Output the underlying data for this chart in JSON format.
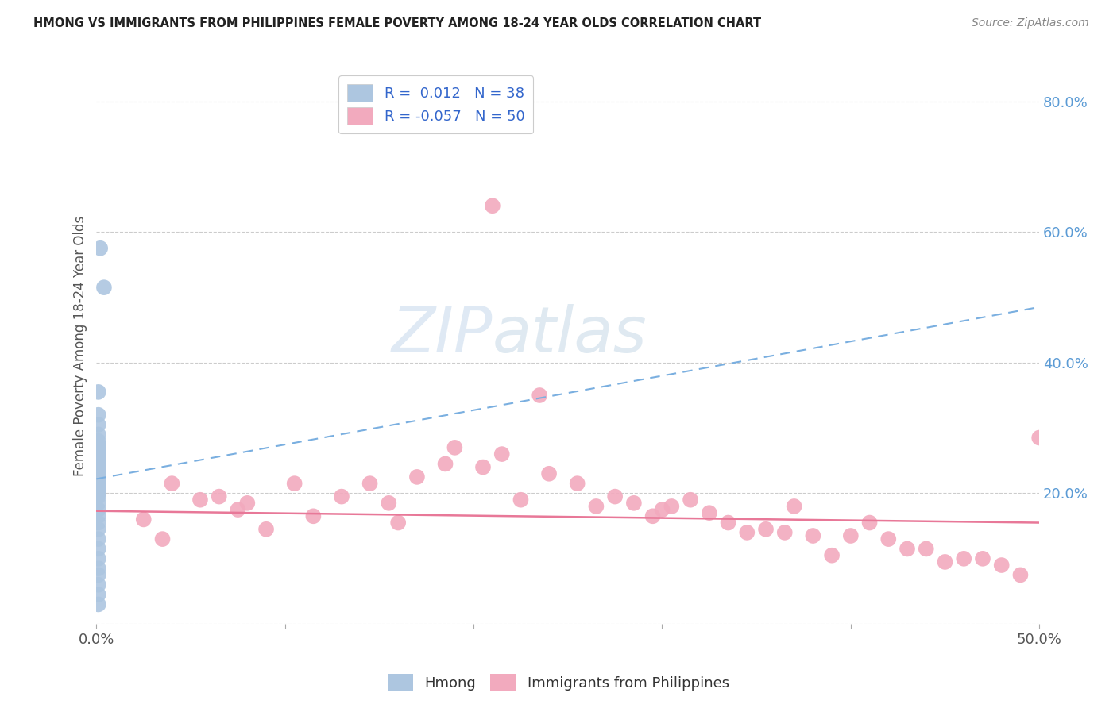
{
  "title": "HMONG VS IMMIGRANTS FROM PHILIPPINES FEMALE POVERTY AMONG 18-24 YEAR OLDS CORRELATION CHART",
  "source": "Source: ZipAtlas.com",
  "ylabel": "Female Poverty Among 18-24 Year Olds",
  "xlim": [
    0.0,
    0.5
  ],
  "ylim": [
    0.0,
    0.85
  ],
  "hmong_color": "#adc6e0",
  "phil_color": "#f2aabe",
  "trendline_hmong_color": "#7aafe0",
  "trendline_phil_color": "#e87898",
  "watermark_zip": "ZIP",
  "watermark_atlas": "atlas",
  "hmong_trendline_x0": 0.0,
  "hmong_trendline_y0": 0.222,
  "hmong_trendline_x1": 0.5,
  "hmong_trendline_y1": 0.485,
  "phil_trendline_x0": 0.0,
  "phil_trendline_y0": 0.173,
  "phil_trendline_x1": 0.5,
  "phil_trendline_y1": 0.155,
  "hmong_x": [
    0.002,
    0.004,
    0.001,
    0.001,
    0.001,
    0.001,
    0.001,
    0.001,
    0.001,
    0.001,
    0.001,
    0.001,
    0.001,
    0.001,
    0.001,
    0.001,
    0.001,
    0.001,
    0.001,
    0.001,
    0.001,
    0.001,
    0.001,
    0.001,
    0.001,
    0.001,
    0.001,
    0.001,
    0.001,
    0.001,
    0.001,
    0.001,
    0.001,
    0.001,
    0.001,
    0.001,
    0.001,
    0.001
  ],
  "hmong_y": [
    0.575,
    0.515,
    0.355,
    0.32,
    0.305,
    0.29,
    0.28,
    0.275,
    0.27,
    0.265,
    0.26,
    0.255,
    0.25,
    0.245,
    0.24,
    0.235,
    0.23,
    0.225,
    0.22,
    0.22,
    0.215,
    0.21,
    0.205,
    0.2,
    0.195,
    0.185,
    0.175,
    0.165,
    0.155,
    0.145,
    0.13,
    0.115,
    0.1,
    0.085,
    0.075,
    0.06,
    0.045,
    0.03
  ],
  "phil_x": [
    0.21,
    0.04,
    0.055,
    0.065,
    0.08,
    0.09,
    0.105,
    0.115,
    0.13,
    0.145,
    0.155,
    0.17,
    0.185,
    0.19,
    0.205,
    0.215,
    0.225,
    0.24,
    0.255,
    0.265,
    0.275,
    0.285,
    0.295,
    0.305,
    0.315,
    0.325,
    0.335,
    0.345,
    0.355,
    0.365,
    0.37,
    0.38,
    0.39,
    0.4,
    0.41,
    0.42,
    0.43,
    0.44,
    0.45,
    0.46,
    0.47,
    0.48,
    0.49,
    0.3,
    0.235,
    0.025,
    0.035,
    0.075,
    0.16,
    0.5
  ],
  "phil_y": [
    0.64,
    0.215,
    0.19,
    0.195,
    0.185,
    0.145,
    0.215,
    0.165,
    0.195,
    0.215,
    0.185,
    0.225,
    0.245,
    0.27,
    0.24,
    0.26,
    0.19,
    0.23,
    0.215,
    0.18,
    0.195,
    0.185,
    0.165,
    0.18,
    0.19,
    0.17,
    0.155,
    0.14,
    0.145,
    0.14,
    0.18,
    0.135,
    0.105,
    0.135,
    0.155,
    0.13,
    0.115,
    0.115,
    0.095,
    0.1,
    0.1,
    0.09,
    0.075,
    0.175,
    0.35,
    0.16,
    0.13,
    0.175,
    0.155,
    0.285
  ]
}
